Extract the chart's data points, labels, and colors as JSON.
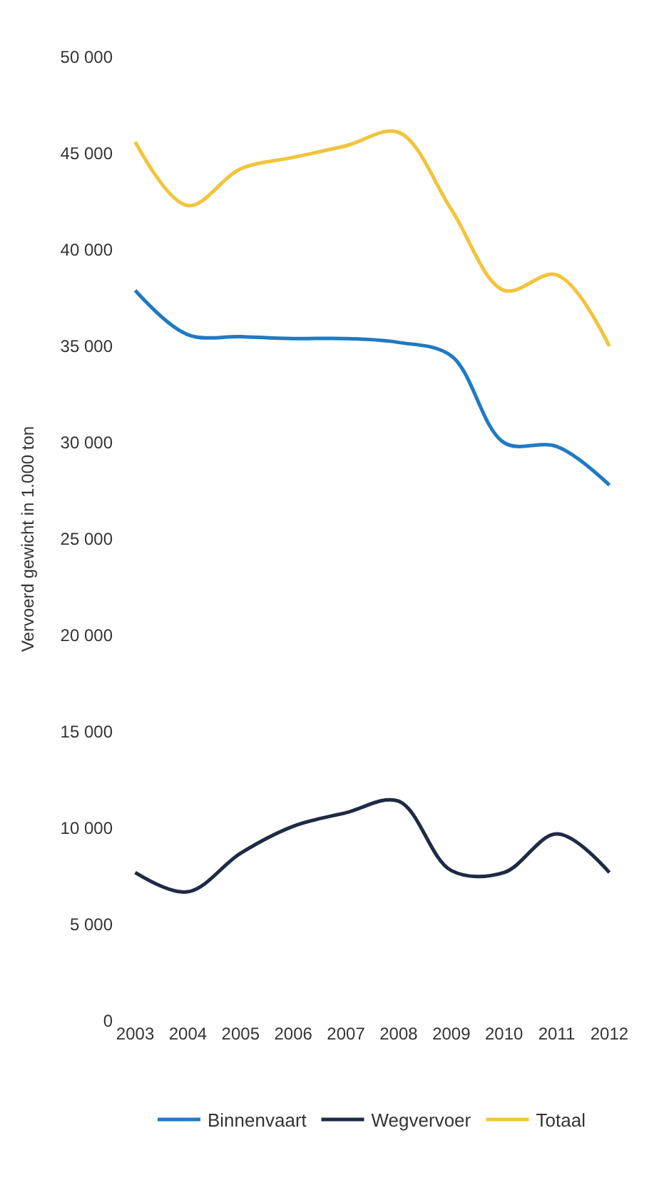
{
  "chart_data": {
    "type": "line",
    "ylabel": "Vervoerd gewicht in 1.000 ton",
    "categories": [
      "2003",
      "2004",
      "2005",
      "2006",
      "2007",
      "2008",
      "2009",
      "2010",
      "2011",
      "2012"
    ],
    "series": [
      {
        "name": "Binnenvaart",
        "color": "#1f7ac4",
        "values": [
          37900,
          35600,
          35500,
          35400,
          35400,
          35200,
          34500,
          30000,
          29800,
          27800
        ]
      },
      {
        "name": "Wegvervoer",
        "color": "#1f2a44",
        "values": [
          7700,
          6700,
          8700,
          10100,
          10800,
          11400,
          7800,
          7700,
          9700,
          7700
        ]
      },
      {
        "name": "Totaal",
        "color": "#f2c43a",
        "values": [
          45600,
          42300,
          44200,
          44800,
          45400,
          46100,
          42100,
          37900,
          38700,
          35000
        ]
      }
    ],
    "ylim": [
      0,
      50000
    ],
    "yticks": [
      {
        "value": 0,
        "label": "0"
      },
      {
        "value": 5000,
        "label": "5 000"
      },
      {
        "value": 10000,
        "label": "10 000"
      },
      {
        "value": 15000,
        "label": "15 000"
      },
      {
        "value": 20000,
        "label": "20 000"
      },
      {
        "value": 25000,
        "label": "25 000"
      },
      {
        "value": 30000,
        "label": "30 000"
      },
      {
        "value": 35000,
        "label": "35 000"
      },
      {
        "value": 40000,
        "label": "40 000"
      },
      {
        "value": 45000,
        "label": "45 000"
      },
      {
        "value": 50000,
        "label": "50 000"
      }
    ],
    "legend": "bottom",
    "grid": false,
    "marker": "none",
    "line_style": "solid"
  }
}
